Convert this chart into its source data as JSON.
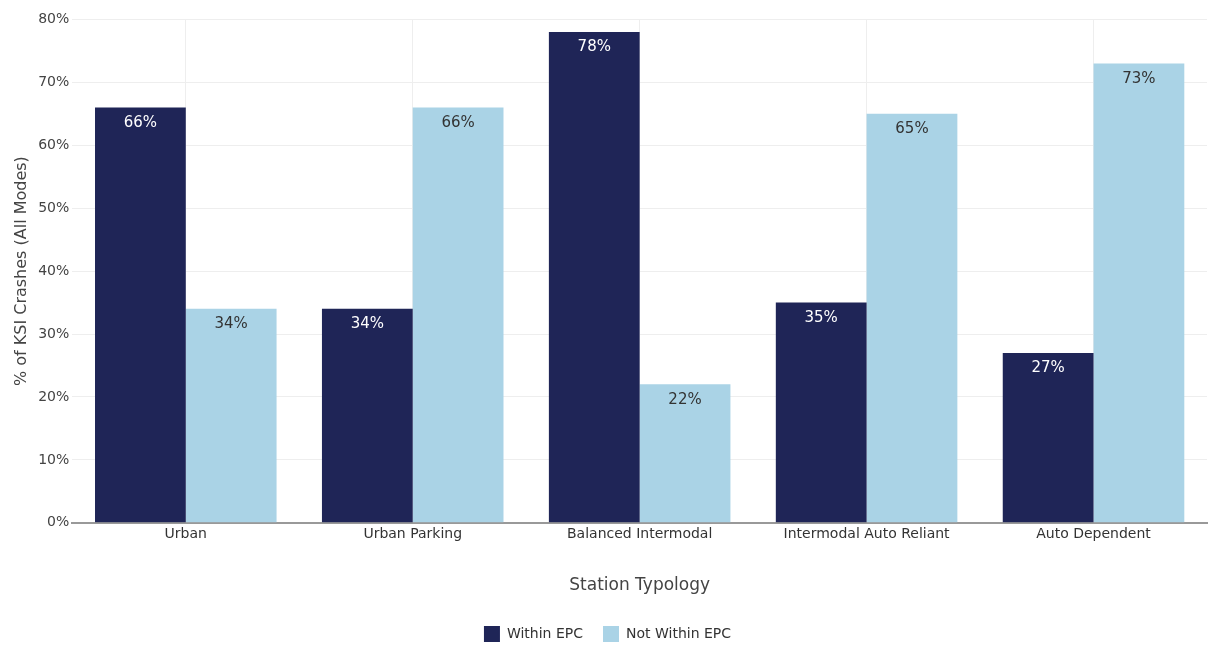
{
  "chart_data": {
    "type": "bar",
    "xlabel": "Station Typology",
    "ylabel": "% of KSI Crashes (All Modes)",
    "categories": [
      "Urban",
      "Urban Parking",
      "Balanced Intermodal",
      "Intermodal Auto Reliant",
      "Auto Dependent"
    ],
    "series": [
      {
        "name": "Within EPC",
        "color": "#1f2557",
        "values": [
          66,
          34,
          78,
          35,
          27
        ],
        "value_labels": [
          "66%",
          "34%",
          "78%",
          "35%",
          "27%"
        ]
      },
      {
        "name": "Not Within EPC",
        "color": "#aad3e6",
        "values": [
          34,
          66,
          22,
          65,
          73
        ],
        "value_labels": [
          "34%",
          "66%",
          "22%",
          "65%",
          "73%"
        ]
      }
    ],
    "ylim": [
      0,
      80
    ],
    "yticks": [
      {
        "value": 0,
        "label": "0%"
      },
      {
        "value": 10,
        "label": "10%"
      },
      {
        "value": 20,
        "label": "20%"
      },
      {
        "value": 30,
        "label": "30%"
      },
      {
        "value": 40,
        "label": "40%"
      },
      {
        "value": 50,
        "label": "50%"
      },
      {
        "value": 60,
        "label": "60%"
      },
      {
        "value": 70,
        "label": "70%"
      },
      {
        "value": 80,
        "label": "80%"
      }
    ],
    "grid": true,
    "legend": "bottom"
  }
}
